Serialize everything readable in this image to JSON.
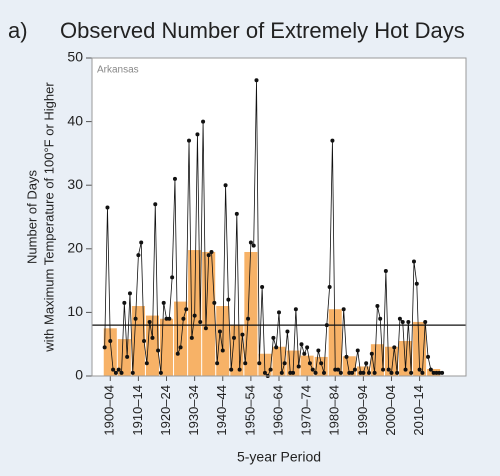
{
  "chart_data": {
    "type": "bar",
    "label": "a)",
    "title": "Observed Number of Extremely Hot Days",
    "annotation": "Arkansas",
    "y_label": [
      "Number of Days",
      "with Maximum Temperature of 100°F or Higher"
    ],
    "x_label": "5-year Period",
    "categories": [
      "1900–04",
      null,
      "1910–14",
      null,
      "1920–24",
      null,
      "1930–34",
      null,
      "1940–44",
      null,
      "1950–54",
      null,
      "1960–64",
      null,
      "1970–74",
      null,
      "1980–84",
      null,
      "1990–94",
      null,
      "2000–04",
      null,
      "2010–14",
      null
    ],
    "series": [
      {
        "type": "bar",
        "color": "#f7b267",
        "values": [
          7.5,
          5.8,
          11,
          9.5,
          9,
          11.7,
          19.8,
          19.5,
          11,
          8,
          19.5,
          3.5,
          4.6,
          4,
          3.2,
          3,
          10.5,
          3.1,
          1.5,
          5,
          4.6,
          5.5,
          8.5,
          1.1
        ]
      },
      {
        "type": "line",
        "color": "#111111",
        "x": [
          1900,
          1901,
          1902,
          1903,
          1904,
          1905,
          1906,
          1907,
          1908,
          1909,
          1910,
          1911,
          1912,
          1913,
          1914,
          1915,
          1916,
          1917,
          1918,
          1919,
          1920,
          1921,
          1922,
          1923,
          1924,
          1925,
          1926,
          1927,
          1928,
          1929,
          1930,
          1931,
          1932,
          1933,
          1934,
          1935,
          1936,
          1937,
          1938,
          1939,
          1940,
          1941,
          1942,
          1943,
          1944,
          1945,
          1946,
          1947,
          1948,
          1949,
          1950,
          1951,
          1952,
          1953,
          1954,
          1955,
          1956,
          1957,
          1958,
          1959,
          1960,
          1961,
          1962,
          1963,
          1964,
          1965,
          1966,
          1967,
          1968,
          1969,
          1970,
          1971,
          1972,
          1973,
          1974,
          1975,
          1976,
          1977,
          1978,
          1979,
          1980,
          1981,
          1982,
          1983,
          1984,
          1985,
          1986,
          1987,
          1988,
          1989,
          1990,
          1991,
          1992,
          1993,
          1994,
          1995,
          1996,
          1997,
          1998,
          1999,
          2000,
          2001,
          2002,
          2003,
          2004,
          2005,
          2006,
          2007,
          2008,
          2009,
          2010,
          2011,
          2012,
          2013,
          2014,
          2015,
          2016,
          2017,
          2018,
          2019,
          2020
        ],
        "values": [
          4.5,
          26.5,
          5.5,
          1,
          0.5,
          1,
          0.5,
          11.5,
          3,
          13,
          0.5,
          9,
          19,
          21,
          5.5,
          2,
          8.5,
          6,
          27,
          4,
          0.5,
          11.5,
          9,
          9,
          15.5,
          31,
          3.5,
          4.5,
          9,
          10.5,
          37,
          6,
          9.5,
          38,
          8.5,
          40,
          7.5,
          19,
          19.5,
          11.5,
          2,
          7,
          4,
          30,
          12,
          1,
          6,
          25.5,
          1,
          6.5,
          2,
          9,
          21,
          20.5,
          46.5,
          2,
          14,
          0.5,
          0,
          1,
          6,
          4.5,
          10,
          0.5,
          2,
          7,
          0.5,
          0.5,
          10.5,
          1.5,
          5,
          3.5,
          4.5,
          2,
          1,
          0.5,
          4,
          2,
          0.5,
          8,
          14,
          37,
          1,
          1,
          0.5,
          10.5,
          3,
          0.5,
          0.5,
          1,
          4,
          0.5,
          0.5,
          2,
          0.5,
          3.5,
          0.5,
          11,
          9,
          1,
          16.5,
          1,
          0.5,
          4.5,
          0.5,
          9,
          8.5,
          1,
          8.5,
          0.5,
          18,
          14.5,
          1,
          0.5,
          8.5,
          3,
          1,
          0.5,
          0.5,
          0.5,
          0.5
        ]
      }
    ],
    "reference_line": 8,
    "reference_color": "#111111",
    "xlim": [
      1896,
      2029
    ],
    "ylim": [
      0,
      50
    ],
    "yticks": [
      0,
      10,
      20,
      30,
      40,
      50
    ]
  }
}
